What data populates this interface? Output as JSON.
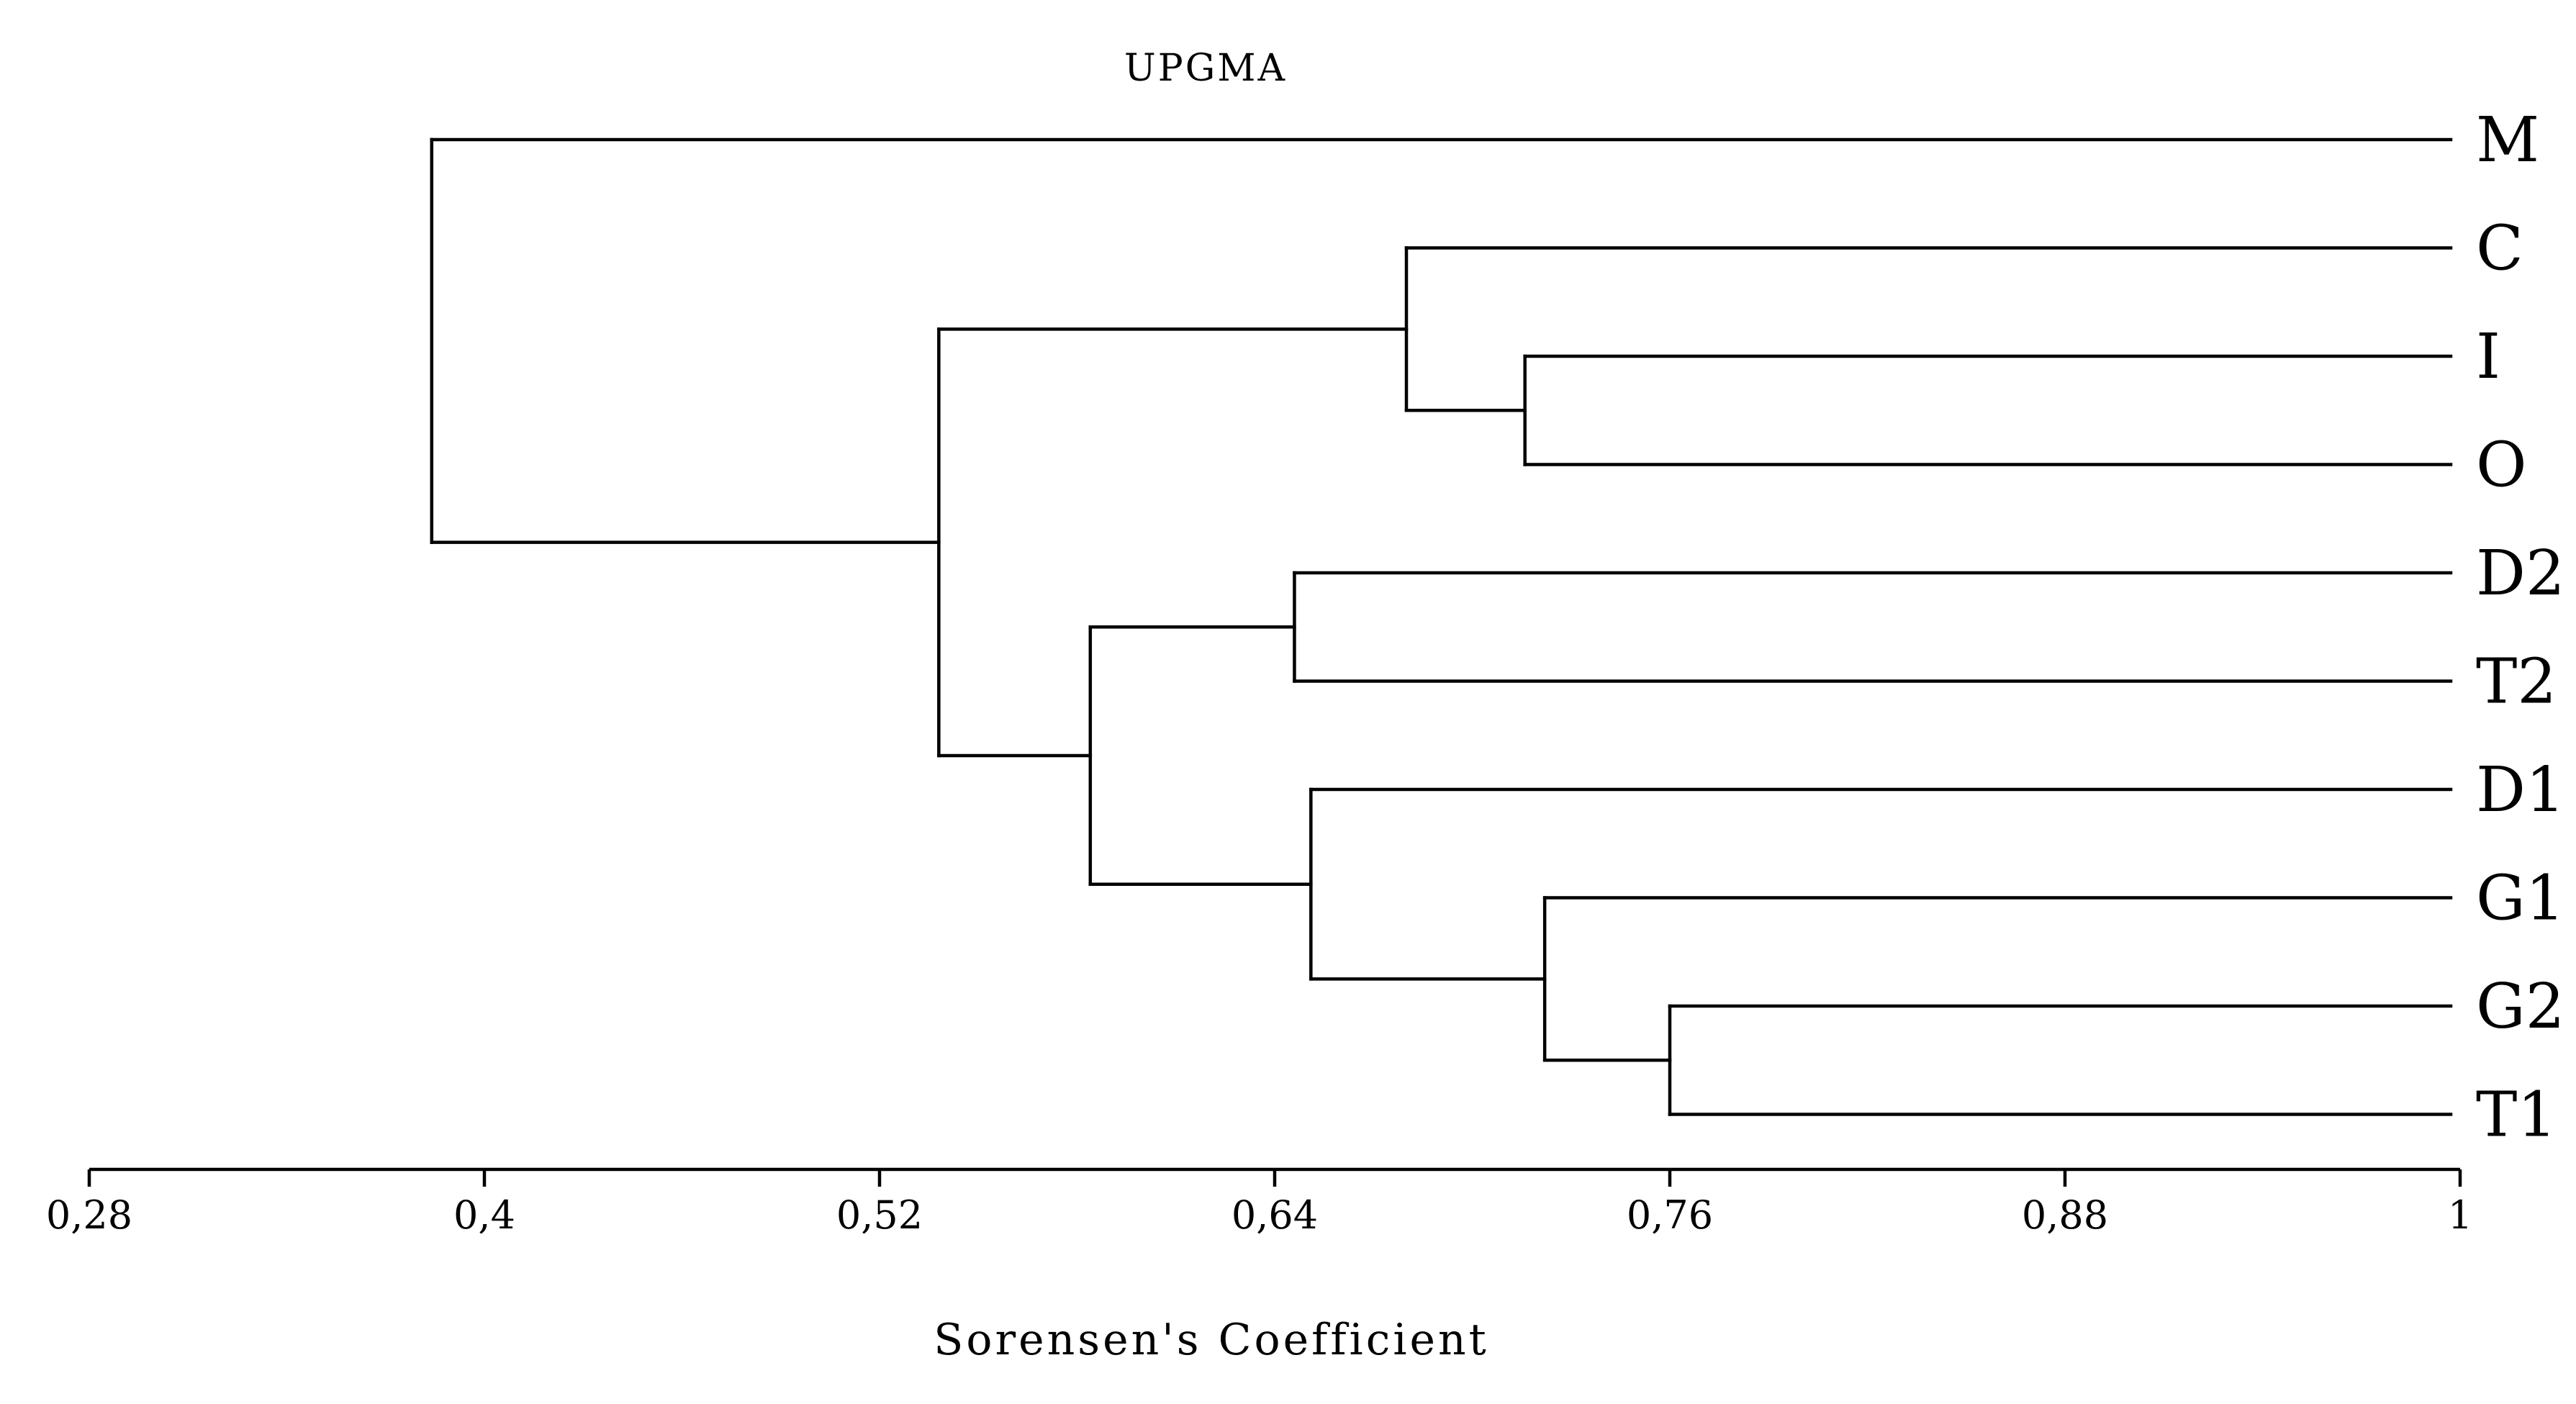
{
  "chart_data": {
    "type": "dendrogram",
    "title": "UPGMA",
    "xlabel": "Sorensen's Coefficient",
    "ylabel": "",
    "xlim": [
      0.28,
      1.0
    ],
    "x_ticks": [
      0.28,
      0.4,
      0.52,
      0.64,
      0.76,
      0.88,
      1.0
    ],
    "x_tick_labels": [
      "0,28",
      "0,4",
      "0,52",
      "0,64",
      "0,76",
      "0,88",
      "1"
    ],
    "leaves": [
      "M",
      "C",
      "I",
      "O",
      "D2",
      "T2",
      "D1",
      "G1",
      "G2",
      "T1"
    ],
    "merges": [
      {
        "id": "n1",
        "children": [
          "G2",
          "T1"
        ],
        "height": 0.76
      },
      {
        "id": "n2",
        "children": [
          "I",
          "O"
        ],
        "height": 0.716
      },
      {
        "id": "n3",
        "children": [
          "G1",
          "n1"
        ],
        "height": 0.722
      },
      {
        "id": "n4",
        "children": [
          "C",
          "n2"
        ],
        "height": 0.68
      },
      {
        "id": "n5",
        "children": [
          "D1",
          "n3"
        ],
        "height": 0.651
      },
      {
        "id": "n6",
        "children": [
          "D2",
          "T2"
        ],
        "height": 0.646
      },
      {
        "id": "n7",
        "children": [
          "n6",
          "n5"
        ],
        "height": 0.584
      },
      {
        "id": "n8",
        "children": [
          "n4",
          "n7"
        ],
        "height": 0.538
      },
      {
        "id": "n9",
        "children": [
          "M",
          "n8"
        ],
        "height": 0.384
      }
    ],
    "grid": false,
    "legend": "none"
  }
}
